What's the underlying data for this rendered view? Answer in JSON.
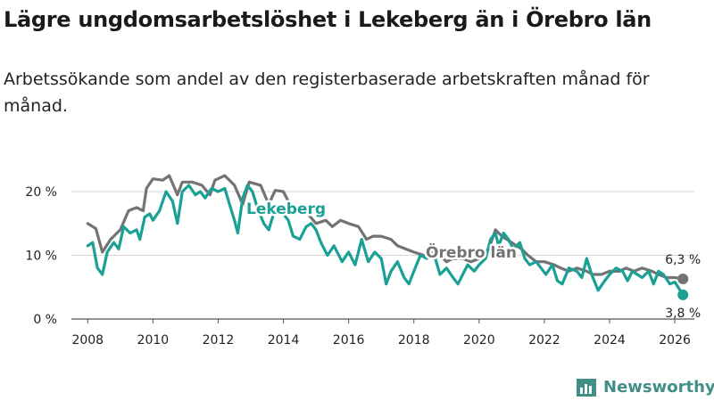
{
  "header": {
    "title": "Lägre ungdomsarbetslöshet i Lekeberg än i Örebro län",
    "subtitle": "Arbetssökande som andel av den registerbaserade arbetskraften månad för månad."
  },
  "brand": {
    "name": "Newsworthy",
    "icon": "newsworthy-logo-icon"
  },
  "chart_data": {
    "type": "line",
    "title": "Lägre ungdomsarbetslöshet i Lekeberg än i Örebro län",
    "subtitle": "Arbetssökande som andel av den registerbaserade arbetskraften månad för månad.",
    "xlabel": "",
    "ylabel": "",
    "xlim": [
      2007.5,
      2026.6
    ],
    "ylim": [
      0,
      23.5
    ],
    "x_ticks": [
      "2008",
      "2010",
      "2012",
      "2014",
      "2016",
      "2018",
      "2020",
      "2022",
      "2024",
      "2026"
    ],
    "y_ticks": [
      {
        "value": 0,
        "label": "0 %"
      },
      {
        "value": 10,
        "label": "10 %"
      },
      {
        "value": 20,
        "label": "20 %"
      }
    ],
    "grid": "horizontal",
    "series": [
      {
        "name": "Örebro län",
        "label": "Örebro län",
        "color": "#737373",
        "end_label": "6,3 %",
        "end_value": 6.3,
        "points": [
          [
            2008.0,
            15.0
          ],
          [
            2008.25,
            14.2
          ],
          [
            2008.45,
            10.5
          ],
          [
            2008.7,
            12.5
          ],
          [
            2009.0,
            14.0
          ],
          [
            2009.25,
            17.0
          ],
          [
            2009.5,
            17.5
          ],
          [
            2009.7,
            17.0
          ],
          [
            2009.8,
            20.5
          ],
          [
            2010.0,
            22.0
          ],
          [
            2010.3,
            21.8
          ],
          [
            2010.5,
            22.5
          ],
          [
            2010.75,
            19.5
          ],
          [
            2010.9,
            21.5
          ],
          [
            2011.2,
            21.5
          ],
          [
            2011.5,
            21.0
          ],
          [
            2011.75,
            19.5
          ],
          [
            2011.9,
            21.8
          ],
          [
            2012.2,
            22.5
          ],
          [
            2012.5,
            21.0
          ],
          [
            2012.75,
            18.0
          ],
          [
            2012.95,
            21.5
          ],
          [
            2013.3,
            21.0
          ],
          [
            2013.55,
            18.0
          ],
          [
            2013.75,
            20.2
          ],
          [
            2014.0,
            20.0
          ],
          [
            2014.2,
            18.0
          ],
          [
            2014.45,
            17.0
          ],
          [
            2014.75,
            16.5
          ],
          [
            2015.0,
            15.0
          ],
          [
            2015.3,
            15.5
          ],
          [
            2015.5,
            14.5
          ],
          [
            2015.75,
            15.5
          ],
          [
            2016.0,
            15.0
          ],
          [
            2016.3,
            14.5
          ],
          [
            2016.55,
            12.5
          ],
          [
            2016.75,
            13.0
          ],
          [
            2017.0,
            13.0
          ],
          [
            2017.3,
            12.5
          ],
          [
            2017.5,
            11.5
          ],
          [
            2017.75,
            11.0
          ],
          [
            2018.0,
            10.5
          ],
          [
            2018.3,
            10.0
          ],
          [
            2018.6,
            9.5
          ],
          [
            2018.8,
            10.0
          ],
          [
            2019.0,
            9.0
          ],
          [
            2019.2,
            9.5
          ],
          [
            2019.5,
            9.5
          ],
          [
            2019.75,
            9.0
          ],
          [
            2020.0,
            9.5
          ],
          [
            2020.3,
            11.0
          ],
          [
            2020.5,
            14.0
          ],
          [
            2020.7,
            13.0
          ],
          [
            2021.0,
            12.0
          ],
          [
            2021.3,
            11.0
          ],
          [
            2021.5,
            10.0
          ],
          [
            2021.75,
            9.0
          ],
          [
            2022.0,
            9.0
          ],
          [
            2022.3,
            8.5
          ],
          [
            2022.5,
            8.0
          ],
          [
            2022.75,
            7.5
          ],
          [
            2023.0,
            8.0
          ],
          [
            2023.3,
            7.5
          ],
          [
            2023.5,
            7.0
          ],
          [
            2023.75,
            7.0
          ],
          [
            2024.0,
            7.5
          ],
          [
            2024.3,
            7.5
          ],
          [
            2024.5,
            8.0
          ],
          [
            2024.75,
            7.5
          ],
          [
            2025.0,
            8.0
          ],
          [
            2025.3,
            7.5
          ],
          [
            2025.5,
            7.0
          ],
          [
            2025.75,
            6.5
          ],
          [
            2026.0,
            6.5
          ],
          [
            2026.25,
            6.3
          ]
        ]
      },
      {
        "name": "Lekeberg",
        "label": "Lekeberg",
        "color": "#1aa095",
        "end_label": "3,8 %",
        "end_value": 3.8,
        "points": [
          [
            2008.0,
            11.5
          ],
          [
            2008.15,
            12.0
          ],
          [
            2008.3,
            8.0
          ],
          [
            2008.45,
            7.0
          ],
          [
            2008.6,
            10.5
          ],
          [
            2008.8,
            12.0
          ],
          [
            2008.95,
            11.0
          ],
          [
            2009.1,
            14.5
          ],
          [
            2009.3,
            13.5
          ],
          [
            2009.5,
            14.0
          ],
          [
            2009.6,
            12.5
          ],
          [
            2009.75,
            16.0
          ],
          [
            2009.9,
            16.5
          ],
          [
            2010.0,
            15.5
          ],
          [
            2010.2,
            17.0
          ],
          [
            2010.4,
            20.0
          ],
          [
            2010.6,
            18.5
          ],
          [
            2010.75,
            15.0
          ],
          [
            2010.9,
            20.0
          ],
          [
            2011.1,
            21.0
          ],
          [
            2011.3,
            19.5
          ],
          [
            2011.45,
            20.0
          ],
          [
            2011.6,
            19.0
          ],
          [
            2011.8,
            20.5
          ],
          [
            2012.0,
            20.0
          ],
          [
            2012.2,
            20.5
          ],
          [
            2012.35,
            18.0
          ],
          [
            2012.5,
            15.5
          ],
          [
            2012.6,
            13.5
          ],
          [
            2012.75,
            19.0
          ],
          [
            2012.9,
            21.0
          ],
          [
            2013.05,
            20.0
          ],
          [
            2013.2,
            17.5
          ],
          [
            2013.4,
            15.0
          ],
          [
            2013.55,
            14.0
          ],
          [
            2013.7,
            16.5
          ],
          [
            2013.85,
            17.0
          ],
          [
            2014.0,
            16.5
          ],
          [
            2014.15,
            15.5
          ],
          [
            2014.3,
            13.0
          ],
          [
            2014.5,
            12.5
          ],
          [
            2014.7,
            14.5
          ],
          [
            2014.85,
            15.0
          ],
          [
            2015.0,
            14.0
          ],
          [
            2015.15,
            12.0
          ],
          [
            2015.35,
            10.0
          ],
          [
            2015.55,
            11.5
          ],
          [
            2015.8,
            9.0
          ],
          [
            2016.0,
            10.5
          ],
          [
            2016.2,
            8.5
          ],
          [
            2016.4,
            12.5
          ],
          [
            2016.6,
            9.0
          ],
          [
            2016.8,
            10.5
          ],
          [
            2017.0,
            9.5
          ],
          [
            2017.15,
            5.5
          ],
          [
            2017.3,
            7.5
          ],
          [
            2017.5,
            9.0
          ],
          [
            2017.7,
            6.5
          ],
          [
            2017.85,
            5.5
          ],
          [
            2018.0,
            7.5
          ],
          [
            2018.2,
            10.0
          ],
          [
            2018.4,
            9.5
          ],
          [
            2018.6,
            10.5
          ],
          [
            2018.8,
            7.0
          ],
          [
            2019.0,
            8.0
          ],
          [
            2019.2,
            6.5
          ],
          [
            2019.35,
            5.5
          ],
          [
            2019.5,
            7.0
          ],
          [
            2019.65,
            8.5
          ],
          [
            2019.85,
            7.5
          ],
          [
            2020.0,
            8.5
          ],
          [
            2020.2,
            9.5
          ],
          [
            2020.35,
            12.5
          ],
          [
            2020.5,
            13.5
          ],
          [
            2020.6,
            11.5
          ],
          [
            2020.75,
            13.5
          ],
          [
            2020.9,
            12.5
          ],
          [
            2021.05,
            11.0
          ],
          [
            2021.25,
            12.0
          ],
          [
            2021.4,
            9.5
          ],
          [
            2021.55,
            8.5
          ],
          [
            2021.75,
            9.0
          ],
          [
            2021.9,
            8.0
          ],
          [
            2022.05,
            7.0
          ],
          [
            2022.25,
            8.5
          ],
          [
            2022.4,
            6.0
          ],
          [
            2022.55,
            5.5
          ],
          [
            2022.75,
            8.0
          ],
          [
            2023.0,
            7.5
          ],
          [
            2023.15,
            6.5
          ],
          [
            2023.3,
            9.5
          ],
          [
            2023.45,
            7.0
          ],
          [
            2023.65,
            4.5
          ],
          [
            2023.85,
            6.0
          ],
          [
            2024.0,
            7.0
          ],
          [
            2024.2,
            8.0
          ],
          [
            2024.4,
            7.5
          ],
          [
            2024.55,
            6.0
          ],
          [
            2024.7,
            7.5
          ],
          [
            2024.85,
            7.0
          ],
          [
            2025.0,
            6.5
          ],
          [
            2025.2,
            7.5
          ],
          [
            2025.35,
            5.5
          ],
          [
            2025.5,
            7.5
          ],
          [
            2025.65,
            7.0
          ],
          [
            2025.85,
            5.5
          ],
          [
            2026.0,
            5.8
          ],
          [
            2026.25,
            3.8
          ]
        ]
      }
    ]
  }
}
